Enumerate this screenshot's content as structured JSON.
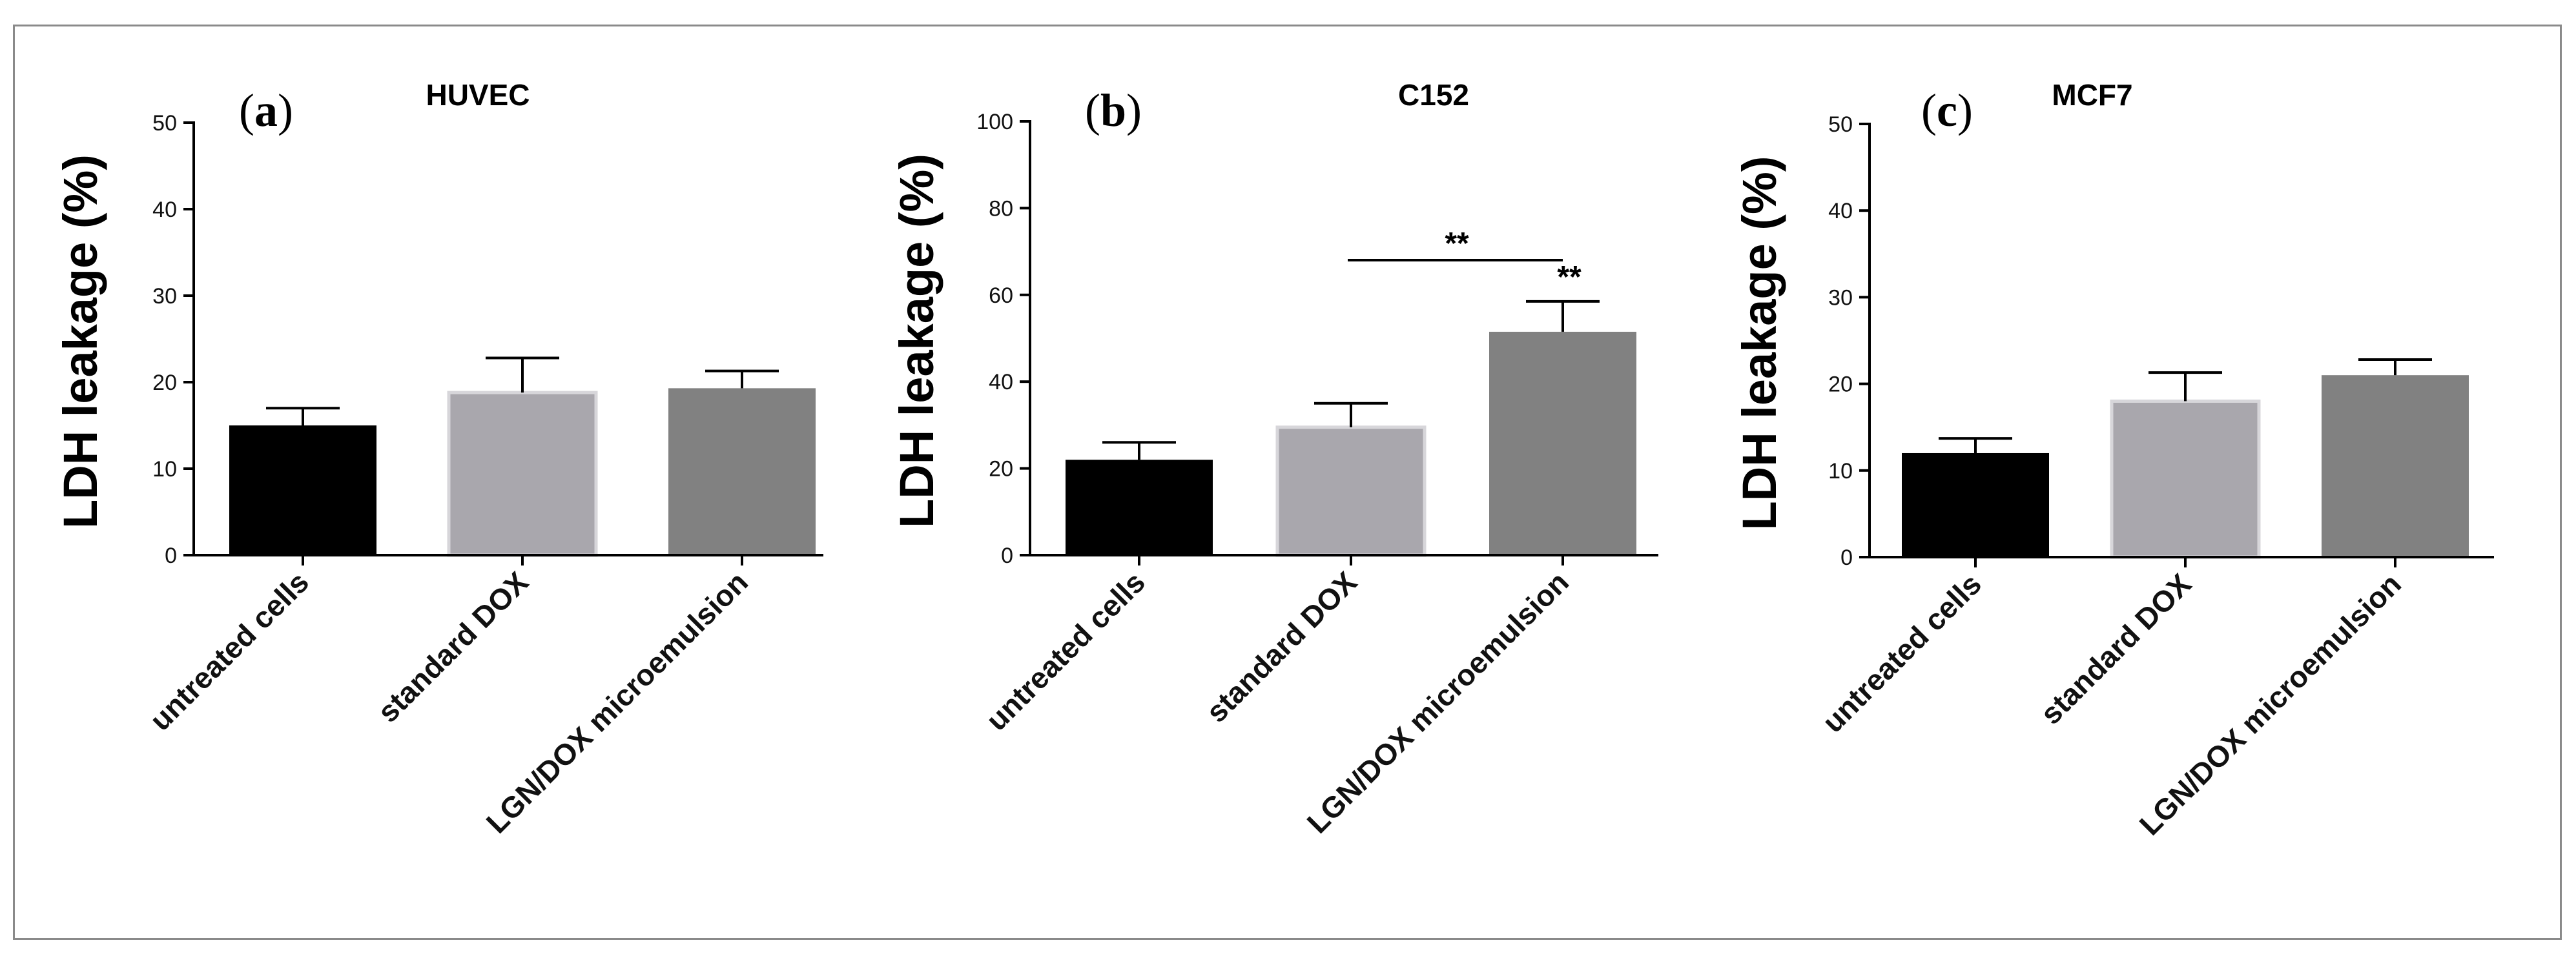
{
  "figure": {
    "colors": {
      "untreated": "#000000",
      "standard": "#a9a7ad",
      "lgn": "#818181",
      "axis": "#000000"
    },
    "border_color": "#8a8a8a"
  },
  "chart_data": [
    {
      "type": "bar",
      "panel_label": {
        "open": "(",
        "letter": "a",
        "close": ")"
      },
      "title": "HUVEC",
      "ylabel": "LDH leakage (%)",
      "xlabel": "",
      "ylim": [
        0,
        50
      ],
      "yticks": [
        0,
        10,
        20,
        30,
        40,
        50
      ],
      "categories": [
        "untreated cells",
        "standard DOX",
        "LGN/DOX microemulsion"
      ],
      "values": [
        15,
        18.8,
        19.3
      ],
      "errors": [
        2,
        4,
        2
      ],
      "annotations": []
    },
    {
      "type": "bar",
      "panel_label": {
        "open": "(",
        "letter": "b",
        "close": ")"
      },
      "title": "C152",
      "ylabel": "LDH leakage (%)",
      "xlabel": "",
      "ylim": [
        0,
        100
      ],
      "yticks": [
        0,
        20,
        40,
        60,
        80,
        100
      ],
      "categories": [
        "untreated cells",
        "standard DOX",
        "LGN/DOX microemulsion"
      ],
      "values": [
        22,
        29.5,
        51.5
      ],
      "errors": [
        4,
        5.5,
        7
      ],
      "annotations": [
        {
          "type": "bracket",
          "from": 1,
          "to": 2,
          "y": 68,
          "label": "**"
        },
        {
          "type": "bar_label",
          "bar": 2,
          "y": 60,
          "label": "**"
        }
      ]
    },
    {
      "type": "bar",
      "panel_label": {
        "open": "(",
        "letter": "c",
        "close": ")"
      },
      "title": "MCF7",
      "ylabel": "LDH leakage (%)",
      "xlabel": "",
      "ylim": [
        0,
        50
      ],
      "yticks": [
        0,
        10,
        20,
        30,
        40,
        50
      ],
      "categories": [
        "untreated cells",
        "standard DOX",
        "LGN/DOX microemulsion"
      ],
      "values": [
        12,
        18,
        21
      ],
      "errors": [
        1.7,
        3.3,
        1.8
      ],
      "annotations": []
    }
  ]
}
